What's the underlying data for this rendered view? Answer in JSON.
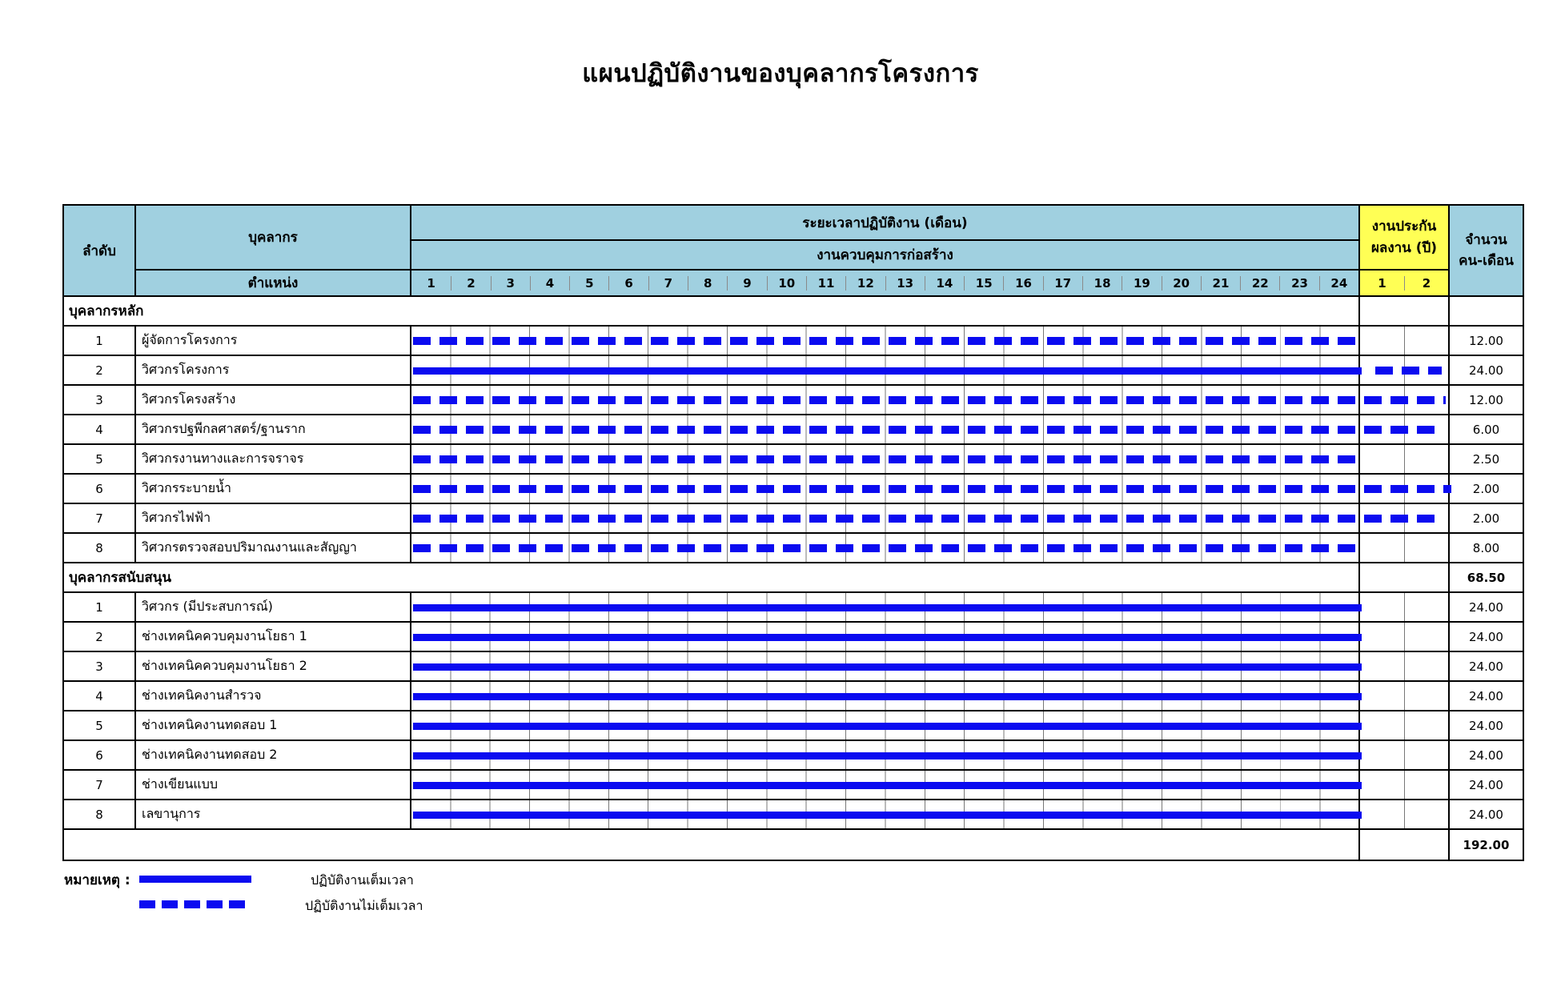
{
  "title": "แผนปฏิบัติงานของบุคลากรโครงการ",
  "colors": {
    "header_blue": "#A0D0E0",
    "warranty_yellow": "#FFFF55",
    "bar_blue": "#0B0BF0"
  },
  "header": {
    "col_no": "ลำดับ",
    "col_personnel": "บุคลากร",
    "col_position": "ตำแหน่ง",
    "duration_title": "ระยะเวลาปฏิบัติงาน (เดือน)",
    "duration_subtitle": "งานควบคุมการก่อสร้าง",
    "months": [
      1,
      2,
      3,
      4,
      5,
      6,
      7,
      8,
      9,
      10,
      11,
      12,
      13,
      14,
      15,
      16,
      17,
      18,
      19,
      20,
      21,
      22,
      23,
      24
    ],
    "warranty_line1": "งานประกัน",
    "warranty_line2": "ผลงาน (ปี)",
    "warranty_years": [
      "1",
      "2"
    ],
    "amount_line1": "จำนวน",
    "amount_line2": "คน-เดือน"
  },
  "sections": [
    {
      "label": "บุคลากรหลัก",
      "total": "",
      "rows": [
        {
          "no": "1",
          "position": "ผู้จัดการโครงการ",
          "amount": "12.00",
          "bars": [
            {
              "style": "dashed",
              "from": 0,
              "to": 24
            }
          ]
        },
        {
          "no": "2",
          "position": "วิศวกรโครงการ",
          "amount": "24.00",
          "bars": [
            {
              "style": "solid",
              "from": 0,
              "to": 24
            },
            {
              "style": "dashed",
              "from": 24.3,
              "to": 25.79
            }
          ]
        },
        {
          "no": "3",
          "position": "วิศวกรโครงสร้าง",
          "amount": "12.00",
          "bars": [
            {
              "style": "dashed",
              "from": 0,
              "to": 25.88
            }
          ]
        },
        {
          "no": "4",
          "position": "วิศวกรปฐพีกลศาสตร์/ฐานราก",
          "amount": "6.00",
          "bars": [
            {
              "style": "dashed",
              "from": 0,
              "to": 25.7
            }
          ]
        },
        {
          "no": "5",
          "position": "วิศวกรงานทางและการจราจร",
          "amount": "2.50",
          "bars": [
            {
              "style": "dashed",
              "from": 0,
              "to": 24
            }
          ]
        },
        {
          "no": "6",
          "position": "วิศวกรระบายน้ำ",
          "amount": "2.00",
          "bars": [
            {
              "style": "dashed",
              "from": 0,
              "to": 26
            }
          ]
        },
        {
          "no": "7",
          "position": "วิศวกรไฟฟ้า",
          "amount": "2.00",
          "bars": [
            {
              "style": "dashed",
              "from": 0,
              "to": 25.82
            }
          ]
        },
        {
          "no": "8",
          "position": "วิศวกรตรวจสอบปริมาณงานและสัญญา",
          "amount": "8.00",
          "bars": [
            {
              "style": "dashed",
              "from": 0,
              "to": 24
            }
          ]
        }
      ]
    },
    {
      "label": "บุคลากรสนับสนุน",
      "total": "68.50",
      "rows": [
        {
          "no": "1",
          "position": "วิศวกร (มีประสบการณ์)",
          "amount": "24.00",
          "bars": [
            {
              "style": "solid",
              "from": 0,
              "to": 24
            }
          ]
        },
        {
          "no": "2",
          "position": "ช่างเทคนิคควบคุมงานโยธา 1",
          "amount": "24.00",
          "bars": [
            {
              "style": "solid",
              "from": 0,
              "to": 24
            }
          ]
        },
        {
          "no": "3",
          "position": "ช่างเทคนิคควบคุมงานโยธา 2",
          "amount": "24.00",
          "bars": [
            {
              "style": "solid",
              "from": 0,
              "to": 24
            }
          ]
        },
        {
          "no": "4",
          "position": "ช่างเทคนิคงานสำรวจ",
          "amount": "24.00",
          "bars": [
            {
              "style": "solid",
              "from": 0,
              "to": 24
            }
          ]
        },
        {
          "no": "5",
          "position": "ช่างเทคนิคงานทดสอบ 1",
          "amount": "24.00",
          "bars": [
            {
              "style": "solid",
              "from": 0,
              "to": 24
            }
          ]
        },
        {
          "no": "6",
          "position": "ช่างเทคนิคงานทดสอบ 2",
          "amount": "24.00",
          "bars": [
            {
              "style": "solid",
              "from": 0,
              "to": 24
            }
          ]
        },
        {
          "no": "7",
          "position": "ช่างเขียนแบบ",
          "amount": "24.00",
          "bars": [
            {
              "style": "solid",
              "from": 0,
              "to": 24
            }
          ]
        },
        {
          "no": "8",
          "position": "เลขานุการ",
          "amount": "24.00",
          "bars": [
            {
              "style": "solid",
              "from": 0,
              "to": 24
            }
          ]
        }
      ]
    }
  ],
  "grand_total": "192.00",
  "legend": {
    "note_label": "หมายเหตุ :",
    "full_time": "ปฏิบัติงานเต็มเวลา",
    "part_time": "ปฏิบัติงานไม่เต็มเวลา"
  },
  "chart_data": {
    "type": "table",
    "subtype": "gantt",
    "title": "แผนปฏิบัติงานของบุคลากรโครงการ",
    "x_axis": {
      "label": "ระยะเวลาปฏิบัติงาน (เดือน)",
      "sublabel": "งานควบคุมการก่อสร้าง",
      "month_range": [
        1,
        24
      ],
      "warranty_label": "งานประกันผลงาน (ปี)",
      "warranty_years": [
        1,
        2
      ]
    },
    "value_column": "จำนวน คน-เดือน",
    "series": [
      {
        "section": "บุคลากรหลัก",
        "name": "ผู้จัดการโครงการ",
        "bar": "dashed",
        "months_span": [
          1,
          24
        ],
        "warranty_bar": null,
        "person_months": 12.0
      },
      {
        "section": "บุคลากรหลัก",
        "name": "วิศวกรโครงการ",
        "bar": "solid",
        "months_span": [
          1,
          24
        ],
        "warranty_bar": "dashed",
        "warranty_span": [
          1,
          2
        ],
        "person_months": 24.0
      },
      {
        "section": "บุคลากรหลัก",
        "name": "วิศวกรโครงสร้าง",
        "bar": "dashed",
        "months_span": [
          1,
          24
        ],
        "warranty_bar": "dashed",
        "warranty_span": [
          1,
          2
        ],
        "person_months": 12.0
      },
      {
        "section": "บุคลากรหลัก",
        "name": "วิศวกรปฐพีกลศาสตร์/ฐานราก",
        "bar": "dashed",
        "months_span": [
          1,
          24
        ],
        "warranty_bar": "dashed",
        "warranty_span": [
          1,
          2
        ],
        "person_months": 6.0
      },
      {
        "section": "บุคลากรหลัก",
        "name": "วิศวกรงานทางและการจราจร",
        "bar": "dashed",
        "months_span": [
          1,
          24
        ],
        "warranty_bar": null,
        "person_months": 2.5
      },
      {
        "section": "บุคลากรหลัก",
        "name": "วิศวกรระบายน้ำ",
        "bar": "dashed",
        "months_span": [
          1,
          24
        ],
        "warranty_bar": "dashed",
        "warranty_span": [
          1,
          2
        ],
        "person_months": 2.0
      },
      {
        "section": "บุคลากรหลัก",
        "name": "วิศวกรไฟฟ้า",
        "bar": "dashed",
        "months_span": [
          1,
          24
        ],
        "warranty_bar": "dashed",
        "warranty_span": [
          1,
          2
        ],
        "person_months": 2.0
      },
      {
        "section": "บุคลากรหลัก",
        "name": "วิศวกรตรวจสอบปริมาณงานและสัญญา",
        "bar": "dashed",
        "months_span": [
          1,
          24
        ],
        "warranty_bar": null,
        "person_months": 8.0
      },
      {
        "section": "บุคลากรสนับสนุน",
        "name": "วิศวกร (มีประสบการณ์)",
        "bar": "solid",
        "months_span": [
          1,
          24
        ],
        "warranty_bar": null,
        "person_months": 24.0
      },
      {
        "section": "บุคลากรสนับสนุน",
        "name": "ช่างเทคนิคควบคุมงานโยธา 1",
        "bar": "solid",
        "months_span": [
          1,
          24
        ],
        "warranty_bar": null,
        "person_months": 24.0
      },
      {
        "section": "บุคลากรสนับสนุน",
        "name": "ช่างเทคนิคควบคุมงานโยธา 2",
        "bar": "solid",
        "months_span": [
          1,
          24
        ],
        "warranty_bar": null,
        "person_months": 24.0
      },
      {
        "section": "บุคลากรสนับสนุน",
        "name": "ช่างเทคนิคงานสำรวจ",
        "bar": "solid",
        "months_span": [
          1,
          24
        ],
        "warranty_bar": null,
        "person_months": 24.0
      },
      {
        "section": "บุคลากรสนับสนุน",
        "name": "ช่างเทคนิคงานทดสอบ 1",
        "bar": "solid",
        "months_span": [
          1,
          24
        ],
        "warranty_bar": null,
        "person_months": 24.0
      },
      {
        "section": "บุคลากรสนับสนุน",
        "name": "ช่างเทคนิคงานทดสอบ 2",
        "bar": "solid",
        "months_span": [
          1,
          24
        ],
        "warranty_bar": null,
        "person_months": 24.0
      },
      {
        "section": "บุคลากรสนับสนุน",
        "name": "ช่างเขียนแบบ",
        "bar": "solid",
        "months_span": [
          1,
          24
        ],
        "warranty_bar": null,
        "person_months": 24.0
      },
      {
        "section": "บุคลากรสนับสนุน",
        "name": "เลขานุการ",
        "bar": "solid",
        "months_span": [
          1,
          24
        ],
        "warranty_bar": null,
        "person_months": 24.0
      }
    ],
    "totals": [
      {
        "shown_at": "บุคลากรสนับสนุน section row",
        "value": 68.5
      },
      {
        "shown_at": "bottom row",
        "value": 192.0
      }
    ],
    "legend": [
      {
        "style": "solid",
        "label": "ปฏิบัติงานเต็มเวลา"
      },
      {
        "style": "dashed",
        "label": "ปฏิบัติงานไม่เต็มเวลา"
      }
    ]
  }
}
